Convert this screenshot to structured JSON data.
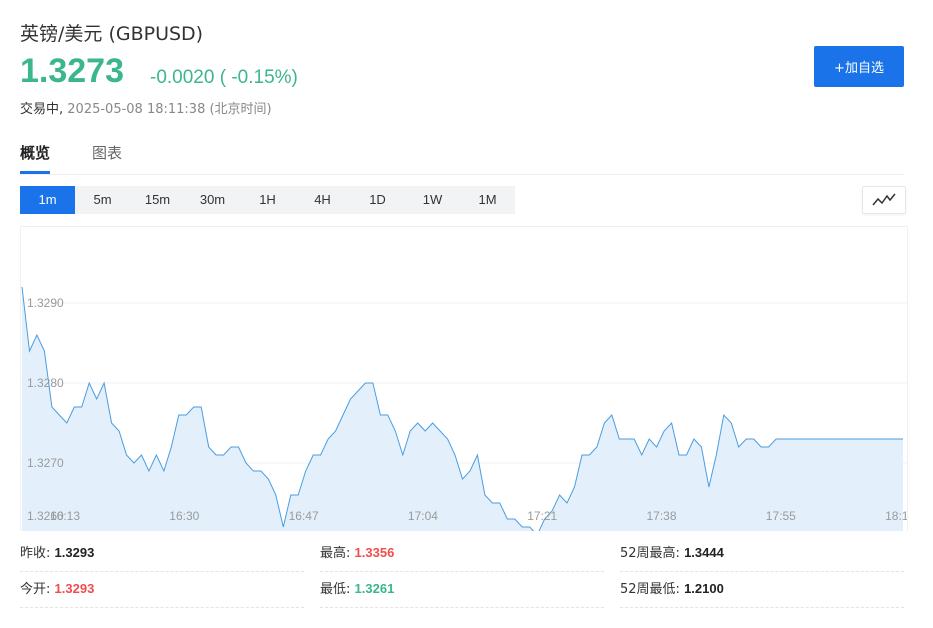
{
  "header": {
    "title": "英镑/美元 (GBPUSD)",
    "price": "1.3273",
    "change": "-0.0020 ( -0.15%)",
    "status": "交易中,",
    "timestamp": "2025-05-08 18:11:38 (北京时间)",
    "add_button": "+加自选"
  },
  "tabs": [
    "概览",
    "图表"
  ],
  "intervals": [
    "1m",
    "5m",
    "15m",
    "30m",
    "1H",
    "4H",
    "1D",
    "1W",
    "1M"
  ],
  "active_interval": "1m",
  "colors": {
    "up": "#f04e4e",
    "down": "#3cb68c",
    "accent": "#1a73e8",
    "line": "#4a9de0",
    "area": "#e3f0fc"
  },
  "chart_data": {
    "type": "area",
    "ylabels": [
      "1.3290",
      "1.3280",
      "1.3270",
      "1.3260"
    ],
    "xlabels": [
      "16:13",
      "16:30",
      "16:47",
      "17:04",
      "17:21",
      "17:38",
      "17:55",
      "18:1"
    ],
    "ylim": [
      1.32615,
      1.32995
    ],
    "x": [
      "16:13",
      "16:14",
      "16:15",
      "16:16",
      "16:17",
      "16:18",
      "16:19",
      "16:20",
      "16:21",
      "16:22",
      "16:23",
      "16:24",
      "16:25",
      "16:26",
      "16:27",
      "16:28",
      "16:29",
      "16:30",
      "16:31",
      "16:32",
      "16:33",
      "16:34",
      "16:35",
      "16:36",
      "16:37",
      "16:38",
      "16:39",
      "16:40",
      "16:41",
      "16:42",
      "16:43",
      "16:44",
      "16:45",
      "16:46",
      "16:47",
      "16:48",
      "16:49",
      "16:50",
      "16:51",
      "16:52",
      "16:53",
      "16:54",
      "16:55",
      "16:56",
      "16:57",
      "16:58",
      "16:59",
      "17:00",
      "17:01",
      "17:02",
      "17:03",
      "17:04",
      "17:05",
      "17:06",
      "17:07",
      "17:08",
      "17:09",
      "17:10",
      "17:11",
      "17:12",
      "17:13",
      "17:14",
      "17:15",
      "17:16",
      "17:17",
      "17:18",
      "17:19",
      "17:20",
      "17:21",
      "17:22",
      "17:23",
      "17:24",
      "17:25",
      "17:26",
      "17:27",
      "17:28",
      "17:29",
      "17:30",
      "17:31",
      "17:32",
      "17:33",
      "17:34",
      "17:35",
      "17:36",
      "17:37",
      "17:38",
      "17:39",
      "17:40",
      "17:41",
      "17:42",
      "17:43",
      "17:44",
      "17:45",
      "17:46",
      "17:47",
      "17:48",
      "17:49",
      "17:50",
      "17:51",
      "17:52",
      "17:53",
      "17:54",
      "17:55",
      "17:56",
      "17:57",
      "17:58",
      "17:59",
      "18:00",
      "18:01",
      "18:02",
      "18:03",
      "18:04",
      "18:05",
      "18:06",
      "18:07",
      "18:08",
      "18:09",
      "18:10",
      "18:11"
    ],
    "values": [
      1.3292,
      1.3284,
      1.3286,
      1.3284,
      1.3277,
      1.3276,
      1.3275,
      1.3277,
      1.3277,
      1.328,
      1.3278,
      1.328,
      1.3275,
      1.3274,
      1.3271,
      1.327,
      1.3271,
      1.3269,
      1.3271,
      1.3269,
      1.3272,
      1.3276,
      1.3276,
      1.3277,
      1.3277,
      1.3272,
      1.3271,
      1.3271,
      1.3272,
      1.3272,
      1.327,
      1.3269,
      1.3269,
      1.3268,
      1.3266,
      1.3262,
      1.3266,
      1.3266,
      1.3269,
      1.3271,
      1.3271,
      1.3273,
      1.3274,
      1.3276,
      1.3278,
      1.3279,
      1.328,
      1.328,
      1.3276,
      1.3276,
      1.3274,
      1.3271,
      1.3274,
      1.3275,
      1.3274,
      1.3275,
      1.3274,
      1.3273,
      1.3271,
      1.3268,
      1.3269,
      1.3271,
      1.3266,
      1.3265,
      1.3265,
      1.3263,
      1.3263,
      1.3262,
      1.3262,
      1.3261,
      1.3263,
      1.3264,
      1.3266,
      1.3265,
      1.3267,
      1.3271,
      1.3271,
      1.3272,
      1.3275,
      1.3276,
      1.3273,
      1.3273,
      1.3273,
      1.3271,
      1.3273,
      1.3272,
      1.3274,
      1.3275,
      1.3271,
      1.3271,
      1.3273,
      1.3272,
      1.3267,
      1.3271,
      1.3276,
      1.3275,
      1.3272,
      1.3273,
      1.3273,
      1.3272,
      1.3272,
      1.3273,
      1.3273,
      1.3273,
      1.3273,
      1.3273,
      1.3273,
      1.3273,
      1.3273,
      1.3273,
      1.3273,
      1.3273,
      1.3273,
      1.3273,
      1.3273,
      1.3273,
      1.3273,
      1.3273,
      1.3273
    ],
    "grid": true
  },
  "stats": [
    {
      "label": "昨收:",
      "value": "1.3293",
      "trend": "neutral"
    },
    {
      "label": "最高:",
      "value": "1.3356",
      "trend": "up"
    },
    {
      "label": "52周最高:",
      "value": "1.3444",
      "trend": "neutral"
    },
    {
      "label": "今开:",
      "value": "1.3293",
      "trend": "up"
    },
    {
      "label": "最低:",
      "value": "1.3261",
      "trend": "down"
    },
    {
      "label": "52周最低:",
      "value": "1.2100",
      "trend": "neutral"
    }
  ]
}
